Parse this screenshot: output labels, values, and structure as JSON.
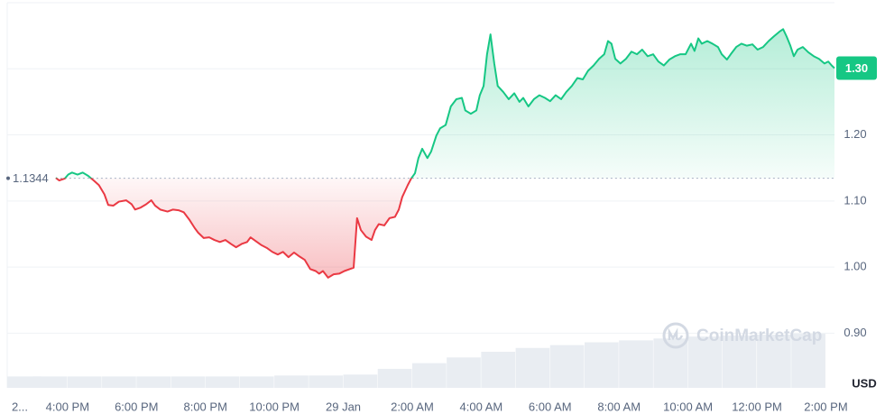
{
  "chart_data": {
    "type": "line",
    "xlim": [
      -1.75,
      22.25
    ],
    "ylim": [
      0.82,
      1.4
    ],
    "xticks": [
      {
        "value": -2,
        "label": "2..."
      },
      {
        "value": 0,
        "label": "4:00 PM"
      },
      {
        "value": 2,
        "label": "6:00 PM"
      },
      {
        "value": 4,
        "label": "8:00 PM"
      },
      {
        "value": 6,
        "label": "10:00 PM"
      },
      {
        "value": 8,
        "label": "29 Jan"
      },
      {
        "value": 10,
        "label": "2:00 AM"
      },
      {
        "value": 12,
        "label": "4:00 AM"
      },
      {
        "value": 14,
        "label": "6:00 AM"
      },
      {
        "value": 16,
        "label": "8:00 AM"
      },
      {
        "value": 18,
        "label": "10:00 AM"
      },
      {
        "value": 20,
        "label": "12:00 PM"
      },
      {
        "value": 22,
        "label": "2:00 PM"
      }
    ],
    "yticks": [
      {
        "value": 0.9,
        "label": "0.90"
      },
      {
        "value": 1.0,
        "label": "1.00"
      },
      {
        "value": 1.1,
        "label": "1.10"
      },
      {
        "value": 1.2,
        "label": "1.20"
      },
      {
        "value": 1.3,
        "label": "1.30"
      }
    ],
    "grid": true,
    "currency": "USD",
    "watermark": "CoinMarketCap",
    "baseline": {
      "value": 1.1344,
      "label": "1.1344"
    },
    "last_price": {
      "value": 1.301,
      "label": "1.30"
    },
    "up_color": "#16c784",
    "down_color": "#ea3943",
    "x": [
      -0.34,
      -0.24,
      -0.08,
      0.02,
      0.13,
      0.29,
      0.44,
      0.6,
      0.76,
      0.91,
      1.07,
      1.18,
      1.33,
      1.49,
      1.7,
      1.86,
      1.96,
      2.12,
      2.28,
      2.43,
      2.54,
      2.69,
      2.9,
      3.06,
      3.22,
      3.37,
      3.53,
      3.69,
      3.79,
      3.95,
      4.11,
      4.26,
      4.42,
      4.58,
      4.74,
      4.89,
      5.05,
      5.21,
      5.31,
      5.47,
      5.63,
      5.78,
      5.94,
      6.1,
      6.25,
      6.41,
      6.57,
      6.73,
      6.88,
      7.04,
      7.2,
      7.3,
      7.41,
      7.56,
      7.72,
      7.88,
      8.03,
      8.19,
      8.3,
      8.4,
      8.51,
      8.66,
      8.82,
      8.92,
      9.03,
      9.19,
      9.34,
      9.5,
      9.61,
      9.71,
      9.87,
      9.97,
      10.08,
      10.18,
      10.29,
      10.44,
      10.55,
      10.7,
      10.81,
      10.97,
      11.12,
      11.28,
      11.44,
      11.54,
      11.7,
      11.86,
      11.96,
      12.07,
      12.17,
      12.27,
      12.38,
      12.48,
      12.64,
      12.8,
      12.96,
      13.11,
      13.22,
      13.37,
      13.53,
      13.69,
      13.85,
      14.0,
      14.16,
      14.32,
      14.47,
      14.63,
      14.79,
      14.95,
      15.1,
      15.26,
      15.42,
      15.57,
      15.68,
      15.78,
      15.89,
      16.04,
      16.2,
      16.36,
      16.52,
      16.67,
      16.83,
      16.99,
      17.14,
      17.3,
      17.46,
      17.62,
      17.77,
      17.93,
      18.09,
      18.19,
      18.3,
      18.4,
      18.56,
      18.71,
      18.87,
      18.98,
      19.13,
      19.24,
      19.4,
      19.55,
      19.71,
      19.87,
      20.02,
      20.18,
      20.34,
      20.49,
      20.65,
      20.76,
      20.86,
      20.97,
      21.07,
      21.18,
      21.33,
      21.49,
      21.65,
      21.8,
      21.96,
      22.07,
      22.17,
      22.25
    ],
    "values": [
      1.135,
      1.131,
      1.134,
      1.14,
      1.143,
      1.14,
      1.143,
      1.138,
      1.131,
      1.124,
      1.11,
      1.094,
      1.093,
      1.099,
      1.101,
      1.095,
      1.087,
      1.09,
      1.095,
      1.101,
      1.093,
      1.087,
      1.084,
      1.087,
      1.086,
      1.083,
      1.072,
      1.059,
      1.052,
      1.044,
      1.045,
      1.041,
      1.038,
      1.041,
      1.035,
      1.03,
      1.035,
      1.038,
      1.045,
      1.039,
      1.033,
      1.029,
      1.023,
      1.019,
      1.023,
      1.015,
      1.022,
      1.016,
      1.011,
      0.997,
      0.994,
      0.99,
      0.994,
      0.984,
      0.989,
      0.99,
      0.994,
      0.997,
      0.999,
      1.074,
      1.056,
      1.046,
      1.041,
      1.056,
      1.065,
      1.063,
      1.074,
      1.076,
      1.087,
      1.106,
      1.124,
      1.134,
      1.142,
      1.165,
      1.179,
      1.165,
      1.175,
      1.199,
      1.21,
      1.215,
      1.243,
      1.254,
      1.256,
      1.237,
      1.232,
      1.237,
      1.26,
      1.274,
      1.322,
      1.352,
      1.308,
      1.274,
      1.265,
      1.254,
      1.263,
      1.25,
      1.256,
      1.243,
      1.254,
      1.26,
      1.256,
      1.251,
      1.26,
      1.254,
      1.265,
      1.274,
      1.286,
      1.284,
      1.297,
      1.305,
      1.315,
      1.322,
      1.342,
      1.338,
      1.315,
      1.308,
      1.315,
      1.326,
      1.322,
      1.329,
      1.319,
      1.322,
      1.311,
      1.305,
      1.314,
      1.319,
      1.322,
      1.322,
      1.338,
      1.327,
      1.346,
      1.338,
      1.342,
      1.338,
      1.333,
      1.322,
      1.314,
      1.322,
      1.333,
      1.338,
      1.335,
      1.337,
      1.329,
      1.333,
      1.342,
      1.349,
      1.356,
      1.36,
      1.349,
      1.335,
      1.319,
      1.329,
      1.333,
      1.325,
      1.319,
      1.315,
      1.308,
      1.311,
      1.305,
      1.301
    ],
    "volume": {
      "color": "#e9edf2",
      "x": [
        -1.5,
        -0.5,
        0.5,
        1.5,
        2.5,
        3.5,
        4.5,
        5.5,
        6.5,
        7.5,
        8.5,
        9.5,
        10.5,
        11.5,
        12.5,
        13.5,
        14.5,
        15.5,
        16.5,
        17.5,
        18.5,
        19.5,
        20.5,
        21.5
      ],
      "values": [
        12,
        12,
        12,
        12,
        12,
        12,
        12,
        12,
        13,
        13,
        14,
        20,
        26,
        32,
        38,
        42,
        45,
        48,
        50,
        52,
        54,
        55,
        56,
        57
      ]
    }
  }
}
